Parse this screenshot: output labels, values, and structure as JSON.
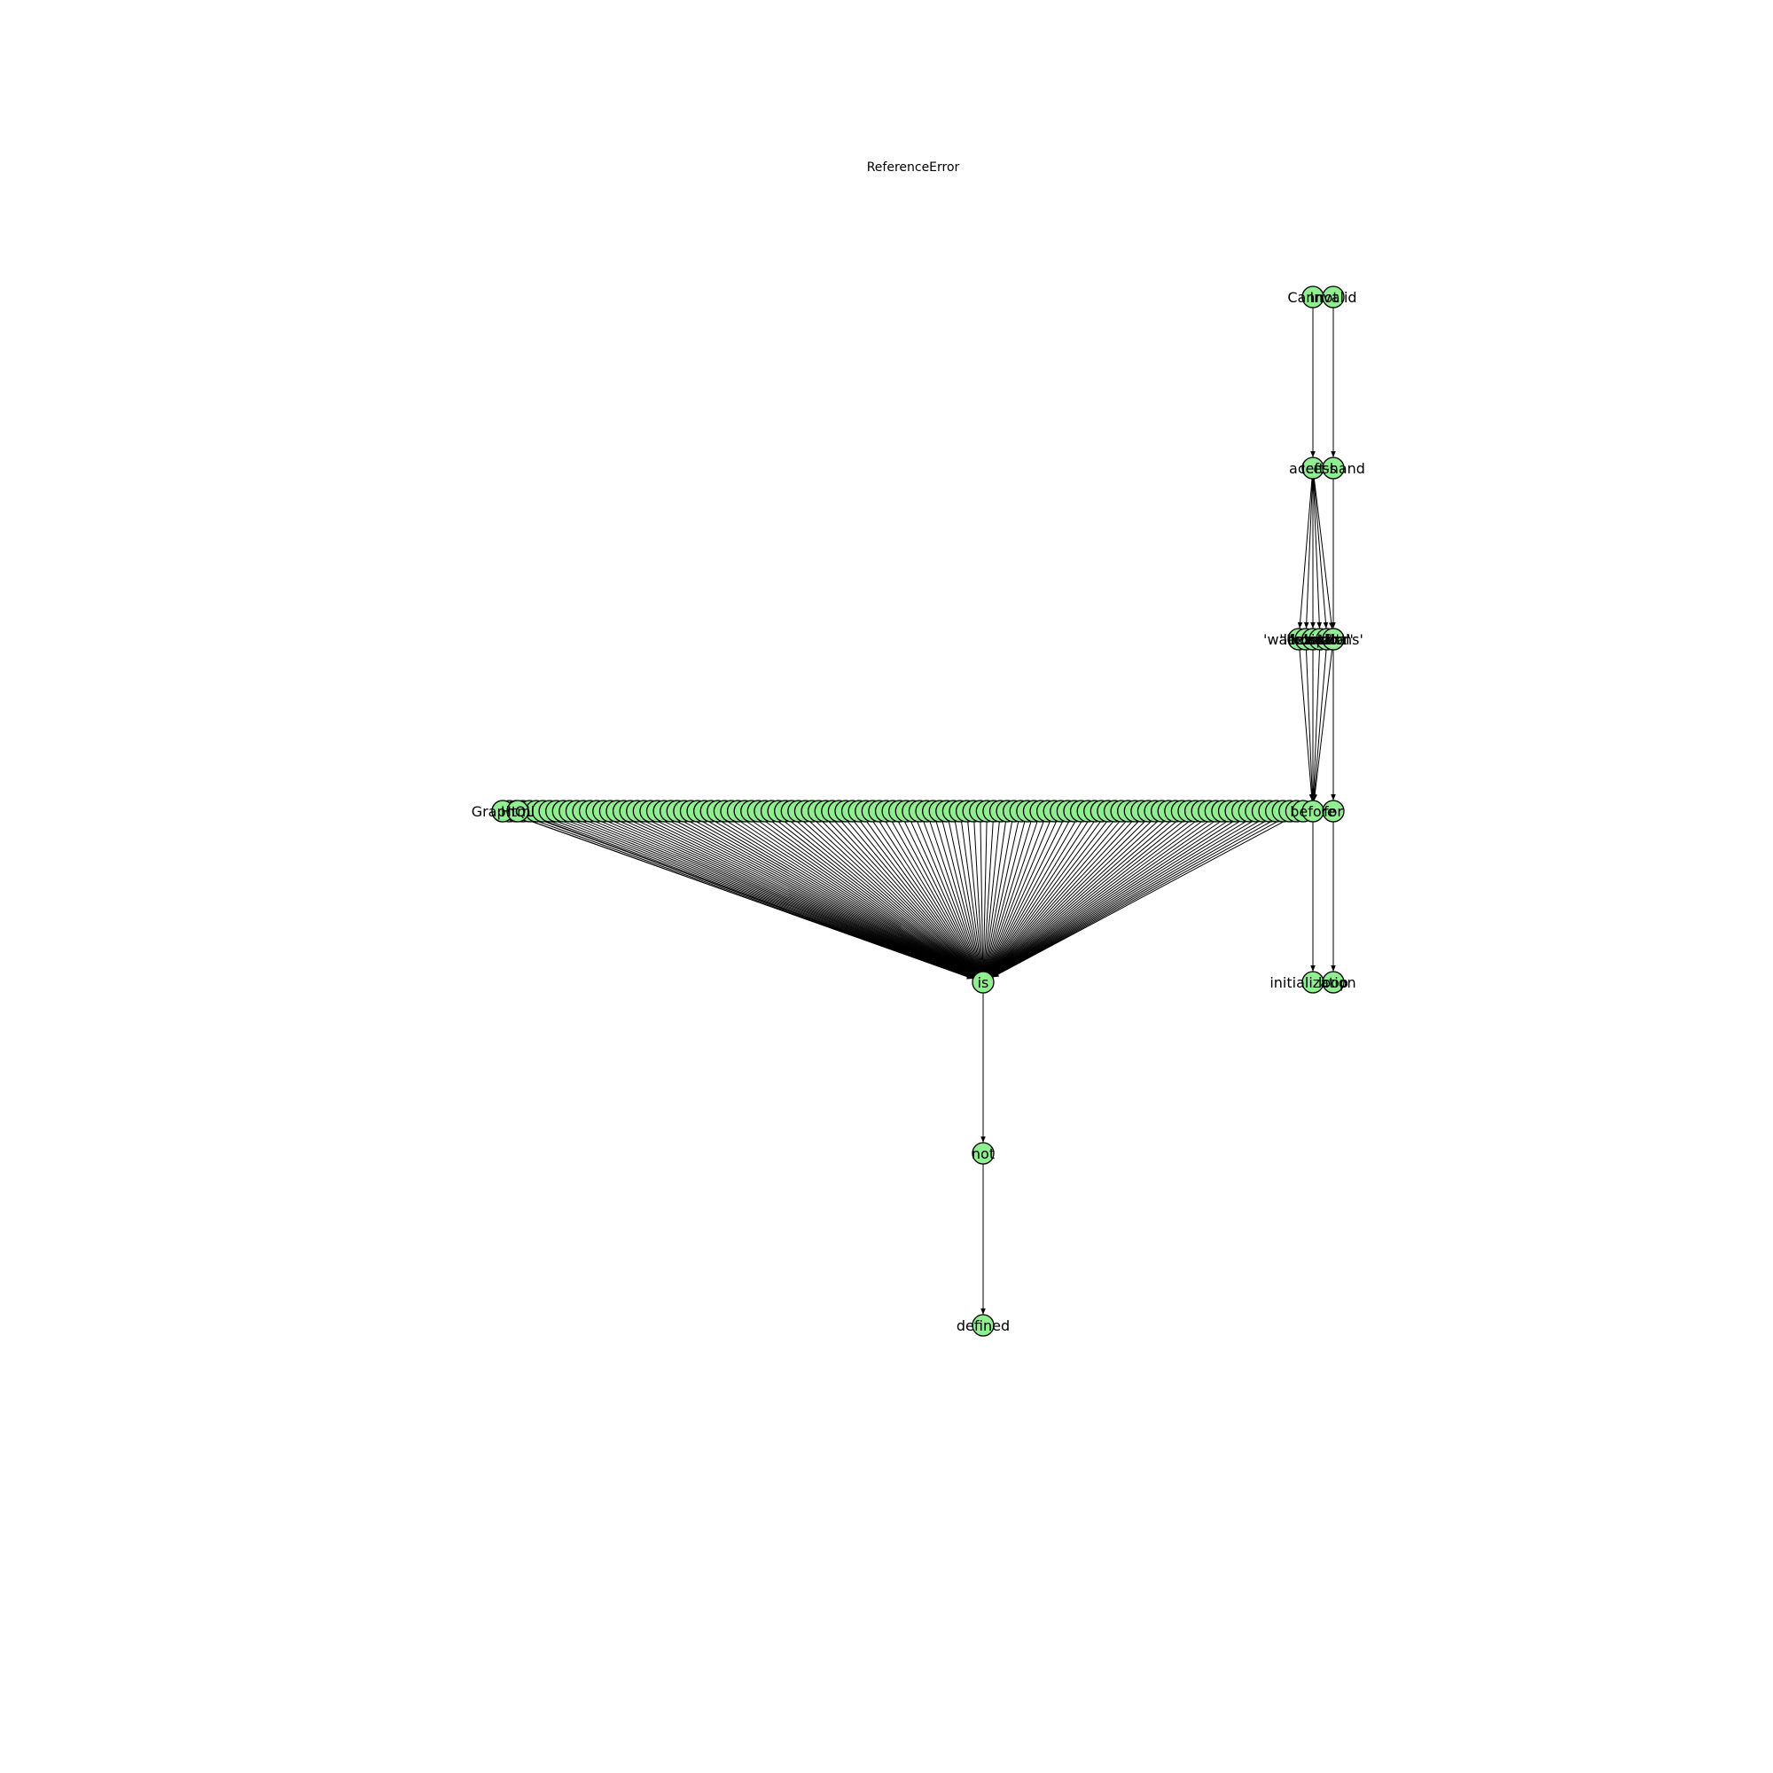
{
  "title": "ReferenceError",
  "colors": {
    "node_fill": "#90ee90",
    "node_stroke": "#000000",
    "edge": "#000000",
    "background": "#ffffff"
  },
  "graph": {
    "nodes": [
      {
        "id": "cannot",
        "label": "Cannot"
      },
      {
        "id": "invalid",
        "label": "Invalid"
      },
      {
        "id": "access",
        "label": "access"
      },
      {
        "id": "left_hand",
        "label": "left-hand"
      },
      {
        "id": "walletsId",
        "label": "'walletsId'"
      },
      {
        "id": "lexical_a",
        "label": "'lexical'"
      },
      {
        "id": "lexical_b",
        "label": "'lexical'"
      },
      {
        "id": "context",
        "label": "'context'"
      },
      {
        "id": "lexical_c",
        "label": "'lexical'"
      },
      {
        "id": "options",
        "label": "'options'"
      },
      {
        "id": "in",
        "label": "in"
      },
      {
        "id": "graphql",
        "label": "GraphQL"
      },
      {
        "id": "html",
        "label": "Html"
      },
      {
        "id": "before",
        "label": "before"
      },
      {
        "id": "for",
        "label": "for"
      },
      {
        "id": "is",
        "label": "is"
      },
      {
        "id": "initialization",
        "label": "initialization"
      },
      {
        "id": "loop",
        "label": "loop"
      },
      {
        "id": "not",
        "label": "not"
      },
      {
        "id": "defined",
        "label": "defined"
      }
    ],
    "edges": [
      [
        "cannot",
        "access"
      ],
      [
        "invalid",
        "left_hand"
      ],
      [
        "access",
        "walletsId"
      ],
      [
        "access",
        "lexical_a"
      ],
      [
        "access",
        "lexical_b"
      ],
      [
        "access",
        "context"
      ],
      [
        "access",
        "lexical_c"
      ],
      [
        "access",
        "options"
      ],
      [
        "left_hand",
        "in"
      ],
      [
        "walletsId",
        "before"
      ],
      [
        "lexical_a",
        "before"
      ],
      [
        "lexical_b",
        "before"
      ],
      [
        "context",
        "before"
      ],
      [
        "lexical_c",
        "before"
      ],
      [
        "options",
        "before"
      ],
      [
        "in",
        "for"
      ],
      [
        "before",
        "initialization"
      ],
      [
        "for",
        "loop"
      ],
      [
        "graphql",
        "is"
      ],
      [
        "html",
        "is"
      ],
      [
        "is",
        "not"
      ],
      [
        "not",
        "defined"
      ]
    ],
    "identifier_row": {
      "count": 120,
      "target": "is"
    }
  }
}
